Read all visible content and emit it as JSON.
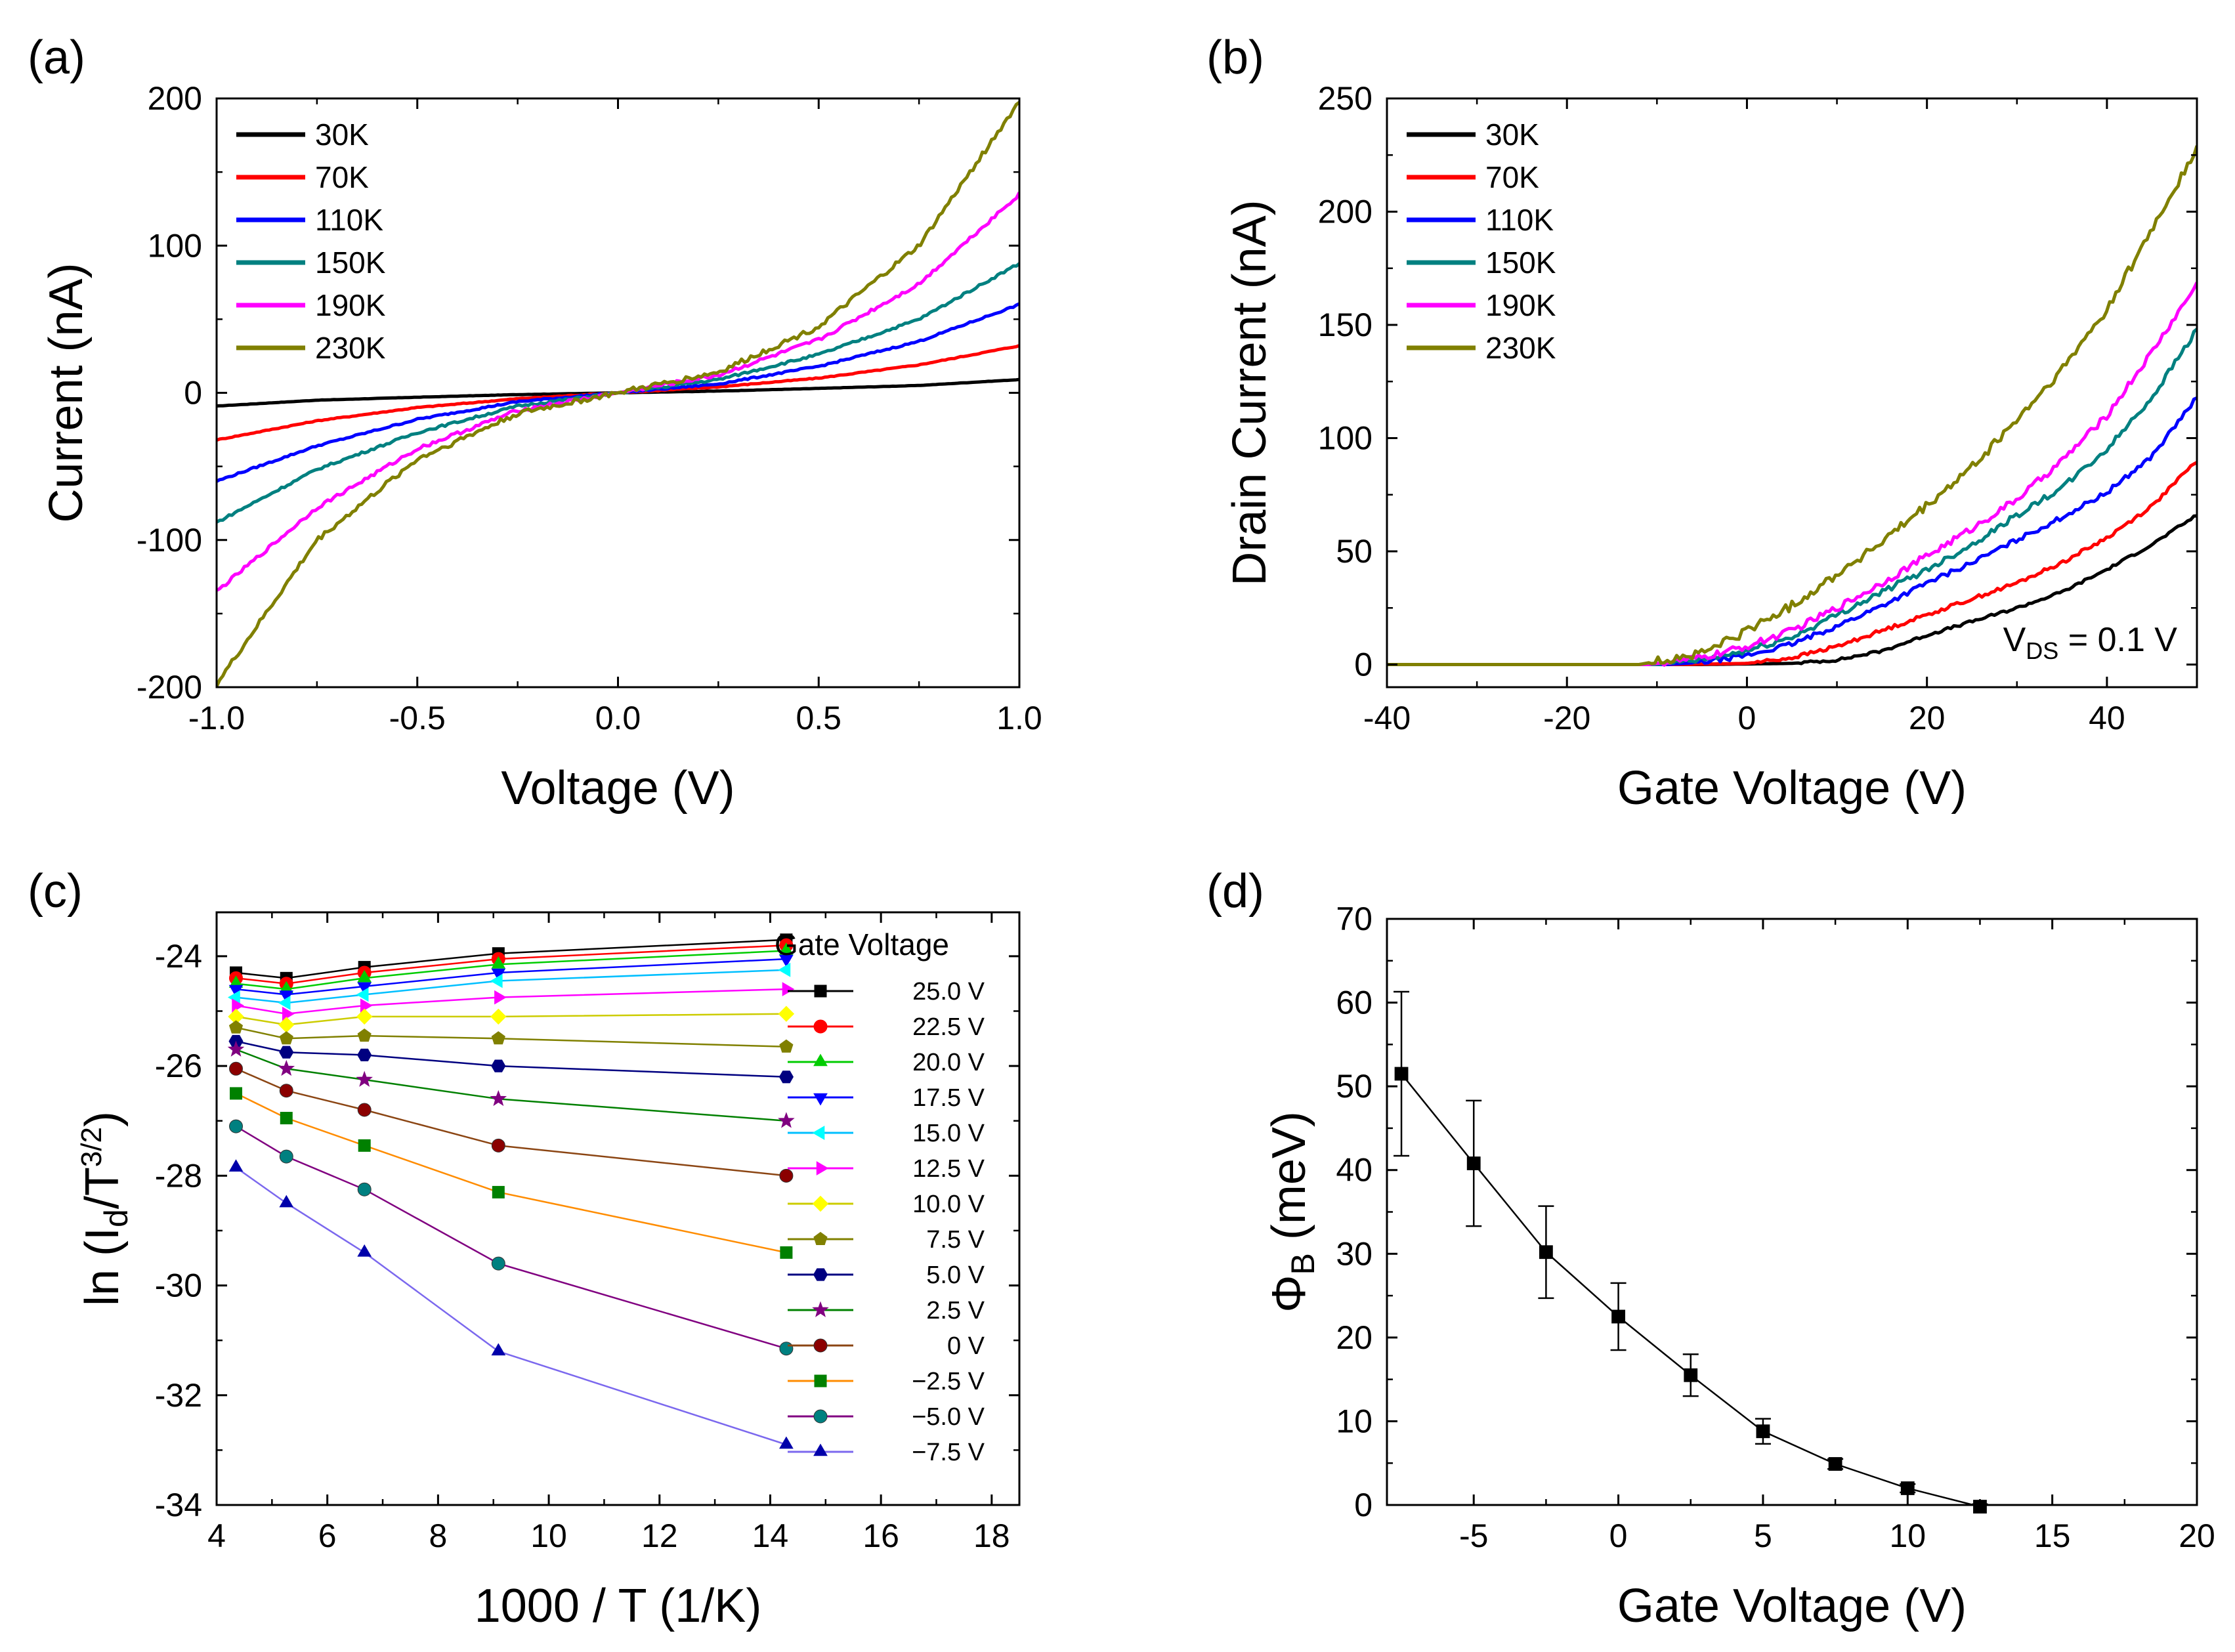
{
  "chart_data": [
    {
      "id": "a",
      "type": "line",
      "panel_label": "(a)",
      "xlabel": "Voltage (V)",
      "ylabel": "Current (nA)",
      "xlim": [
        -1.0,
        1.0
      ],
      "ylim": [
        -200,
        200
      ],
      "xticks": [
        -1.0,
        -0.5,
        0.0,
        0.5,
        1.0
      ],
      "xtick_labels": [
        "-1.0",
        "-0.5",
        "0.0",
        "0.5",
        "1.0"
      ],
      "yticks": [
        -200,
        -100,
        0,
        100,
        200
      ],
      "ytick_labels": [
        "-200",
        "-100",
        "0",
        "100",
        "200"
      ],
      "legend_position": "top-left",
      "series": [
        {
          "name": "30K",
          "color": "#000000",
          "x": [
            -1.0,
            -0.75,
            -0.5,
            -0.25,
            0.0,
            0.25,
            0.5,
            0.75,
            1.0
          ],
          "y": [
            -9,
            -5,
            -3,
            -1.2,
            0,
            1.2,
            3,
            5,
            9
          ]
        },
        {
          "name": "70K",
          "color": "#ff0000",
          "x": [
            -1.0,
            -0.75,
            -0.5,
            -0.25,
            0.0,
            0.25,
            0.5,
            0.75,
            1.0
          ],
          "y": [
            -32,
            -19,
            -10,
            -4,
            0,
            4,
            10,
            19,
            32
          ]
        },
        {
          "name": "110K",
          "color": "#0000ff",
          "x": [
            -1.0,
            -0.75,
            -0.5,
            -0.25,
            0.0,
            0.25,
            0.5,
            0.75,
            1.0
          ],
          "y": [
            -60,
            -36,
            -18,
            -6,
            0,
            6,
            18,
            35,
            60
          ]
        },
        {
          "name": "150K",
          "color": "#008080",
          "x": [
            -1.0,
            -0.75,
            -0.5,
            -0.25,
            0.0,
            0.25,
            0.5,
            0.75,
            1.0
          ],
          "y": [
            -88,
            -52,
            -27,
            -9,
            0,
            9,
            26,
            50,
            88
          ]
        },
        {
          "name": "190K",
          "color": "#ff00ff",
          "x": [
            -1.0,
            -0.75,
            -0.5,
            -0.25,
            0.0,
            0.25,
            0.5,
            0.75,
            1.0
          ],
          "y": [
            -135,
            -78,
            -38,
            -12,
            0,
            12,
            36,
            74,
            135
          ]
        },
        {
          "name": "230K",
          "color": "#808000",
          "x": [
            -1.0,
            -0.75,
            -0.5,
            -0.25,
            0.0,
            0.25,
            0.5,
            0.75,
            1.0
          ],
          "y": [
            -198,
            -100,
            -45,
            -14,
            0,
            14,
            45,
            100,
            198
          ]
        }
      ]
    },
    {
      "id": "b",
      "type": "line",
      "panel_label": "(b)",
      "xlabel": "Gate Voltage (V)",
      "ylabel": "Drain Current (nA)",
      "xlim": [
        -40,
        50
      ],
      "ylim": [
        -10,
        250
      ],
      "xticks": [
        -40,
        -20,
        0,
        20,
        40
      ],
      "xtick_labels": [
        "-40",
        "-20",
        "0",
        "20",
        "40"
      ],
      "yticks": [
        0,
        50,
        100,
        150,
        200,
        250
      ],
      "ytick_labels": [
        "0",
        "50",
        "100",
        "150",
        "200",
        "250"
      ],
      "legend_position": "top-left",
      "annotation": {
        "main": "V",
        "sub": "DS",
        "rest": " = 0.1 V"
      },
      "series": [
        {
          "name": "30K",
          "color": "#000000",
          "x": [
            -40,
            -5,
            5,
            10,
            15,
            20,
            25,
            30,
            35,
            40,
            45,
            50
          ],
          "y": [
            0,
            0,
            0.5,
            2,
            6,
            13,
            19,
            25,
            32,
            42,
            53,
            66
          ]
        },
        {
          "name": "70K",
          "color": "#ff0000",
          "x": [
            -40,
            -8,
            0,
            5,
            10,
            15,
            20,
            25,
            30,
            35,
            40,
            45,
            50
          ],
          "y": [
            0,
            0,
            0.5,
            3,
            8,
            15,
            22,
            29,
            36,
            45,
            56,
            70,
            90
          ]
        },
        {
          "name": "110K",
          "color": "#0000ff",
          "x": [
            -40,
            -9,
            -5,
            0,
            5,
            10,
            15,
            20,
            25,
            30,
            35,
            40,
            45,
            50
          ],
          "y": [
            0,
            0,
            1,
            4,
            9,
            17,
            26,
            36,
            45,
            55,
            65,
            76,
            92,
            118
          ]
        },
        {
          "name": "150K",
          "color": "#008080",
          "x": [
            -40,
            -10,
            -5,
            0,
            5,
            10,
            15,
            20,
            25,
            30,
            35,
            40,
            45,
            50
          ],
          "y": [
            0,
            0,
            2,
            6,
            12,
            22,
            32,
            42,
            53,
            66,
            78,
            95,
            118,
            148
          ]
        },
        {
          "name": "190K",
          "color": "#ff00ff",
          "x": [
            -40,
            -11,
            -5,
            0,
            5,
            10,
            15,
            20,
            25,
            30,
            35,
            40,
            45,
            50
          ],
          "y": [
            0,
            0,
            3,
            8,
            15,
            25,
            36,
            48,
            60,
            73,
            90,
            110,
            138,
            168
          ]
        },
        {
          "name": "230K",
          "color": "#808000",
          "x": [
            -40,
            -12,
            -5,
            0,
            5,
            10,
            15,
            20,
            25,
            30,
            35,
            40,
            45,
            50
          ],
          "y": [
            0,
            0,
            5,
            15,
            26,
            40,
            54,
            70,
            87,
            108,
            130,
            157,
            192,
            228
          ]
        }
      ]
    },
    {
      "id": "c",
      "type": "line",
      "panel_label": "(c)",
      "xlabel": "1000 / T (1/K)",
      "ylabel_main": "ln (I",
      "ylabel_sub": "d",
      "ylabel_mid": "/T",
      "ylabel_sup": "3/2",
      "ylabel_end": ")",
      "xlim": [
        4,
        18.5
      ],
      "ylim": [
        -34,
        -23.2
      ],
      "xticks": [
        4,
        6,
        8,
        10,
        12,
        14,
        16,
        18
      ],
      "xtick_labels": [
        "4",
        "6",
        "8",
        "10",
        "12",
        "14",
        "16",
        "18"
      ],
      "yticks": [
        -34,
        -32,
        -30,
        -28,
        -26,
        -24
      ],
      "ytick_labels": [
        "-34",
        "-32",
        "-30",
        "-28",
        "-26",
        "-24"
      ],
      "legend_title": "Gate Voltage",
      "legend_position": "right",
      "x": [
        4.35,
        5.26,
        6.67,
        9.09,
        14.29
      ],
      "series": [
        {
          "name": "25.0 V",
          "color": "#000000",
          "marker": "square",
          "y": [
            -24.3,
            -24.4,
            -24.2,
            -23.95,
            -23.7
          ]
        },
        {
          "name": "22.5 V",
          "color": "#ff0000",
          "marker": "circle",
          "y": [
            -24.4,
            -24.5,
            -24.3,
            -24.05,
            -23.8
          ]
        },
        {
          "name": "20.0 V",
          "color": "#00cc00",
          "marker": "triangle-up",
          "y": [
            -24.5,
            -24.6,
            -24.4,
            -24.15,
            -23.9
          ]
        },
        {
          "name": "17.5 V",
          "color": "#0000ff",
          "marker": "triangle-down",
          "y": [
            -24.6,
            -24.7,
            -24.55,
            -24.3,
            -24.05
          ]
        },
        {
          "name": "15.0 V",
          "color": "#00ffff",
          "marker": "triangle-left",
          "y": [
            -24.75,
            -24.85,
            -24.7,
            -24.45,
            -24.25
          ]
        },
        {
          "name": "12.5 V",
          "color": "#ff00ff",
          "marker": "triangle-right",
          "y": [
            -24.9,
            -25.05,
            -24.9,
            -24.75,
            -24.6
          ]
        },
        {
          "name": "10.0 V",
          "color": "#ffff00",
          "marker": "diamond",
          "y": [
            -25.1,
            -25.25,
            -25.1,
            -25.1,
            -25.05
          ]
        },
        {
          "name": "7.5 V",
          "color": "#808000",
          "marker": "pentagon",
          "y": [
            -25.3,
            -25.5,
            -25.45,
            -25.5,
            -25.65
          ]
        },
        {
          "name": "5.0 V",
          "color": "#000080",
          "marker": "hexagon",
          "y": [
            -25.55,
            -25.75,
            -25.8,
            -26.0,
            -26.2
          ]
        },
        {
          "name": "2.5 V",
          "color": "#800080",
          "marker": "star",
          "y": [
            -25.7,
            -26.05,
            -26.25,
            -26.6,
            -27.0
          ]
        },
        {
          "name": "0 V",
          "color": "#8b0000",
          "marker": "sphere",
          "y": [
            -26.05,
            -26.45,
            -26.8,
            -27.45,
            -28.0
          ]
        },
        {
          "name": "−2.5 V",
          "color": "#008000",
          "marker": "square",
          "y": [
            -26.5,
            -26.95,
            -27.45,
            -28.3,
            -29.4
          ]
        },
        {
          "name": "−5.0 V",
          "color": "#008080",
          "marker": "sphere",
          "y": [
            -27.1,
            -27.65,
            -28.25,
            -29.6,
            -31.15
          ]
        },
        {
          "name": "−7.5 V",
          "color": "#0000aa",
          "marker": "triangle-up",
          "y": [
            -27.85,
            -28.5,
            -29.4,
            -31.2,
            -32.9
          ]
        }
      ],
      "line_colors": [
        "#000000",
        "#ff0000",
        "#00cc00",
        "#0000ff",
        "#00bfff",
        "#ff00ff",
        "#cccc00",
        "#808000",
        "#000080",
        "#008000",
        "#8b4513",
        "#ff8c00",
        "#800080",
        "#7b68ee"
      ]
    },
    {
      "id": "d",
      "type": "scatter",
      "panel_label": "(d)",
      "xlabel": "Gate Voltage (V)",
      "ylabel_main": "Φ",
      "ylabel_sub": "B",
      "ylabel_end": " (meV)",
      "xlim": [
        -8,
        20
      ],
      "ylim": [
        0,
        70
      ],
      "xticks": [
        -5,
        0,
        5,
        10,
        15,
        20
      ],
      "xtick_labels": [
        "-5",
        "0",
        "5",
        "10",
        "15",
        "20"
      ],
      "yticks": [
        0,
        10,
        20,
        30,
        40,
        50,
        60,
        70
      ],
      "ytick_labels": [
        "0",
        "10",
        "20",
        "30",
        "40",
        "50",
        "60",
        "70"
      ],
      "x": [
        -7.5,
        -5,
        -2.5,
        0,
        2.5,
        5,
        7.5,
        10,
        12.5
      ],
      "y": [
        51.5,
        40.8,
        30.2,
        22.5,
        15.5,
        8.8,
        4.9,
        2.0,
        -0.2
      ],
      "err": [
        9.8,
        7.5,
        5.5,
        4.0,
        2.5,
        1.5,
        0.6,
        0.5,
        0.3
      ],
      "marker": "square",
      "color": "#000000"
    }
  ]
}
